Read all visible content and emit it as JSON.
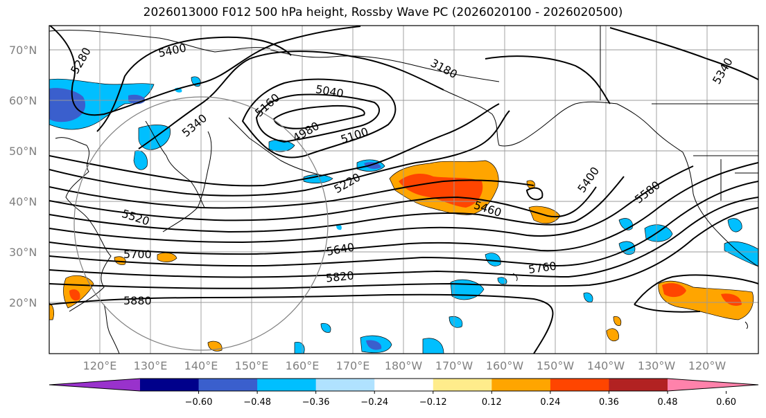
{
  "title": "2026013000 F012 500 hPa height, Rossby Wave PC (2026020100 - 2026020500)",
  "latitude_labels": [
    "70°N",
    "60°N",
    "50°N",
    "40°N",
    "30°N",
    "20°N"
  ],
  "longitude_labels": [
    "120°E",
    "130°E",
    "140°E",
    "150°E",
    "160°E",
    "170°E",
    "180°W",
    "170°W",
    "160°W",
    "150°W",
    "140°W",
    "130°W",
    "120°W"
  ],
  "contour_labels": [
    "5280",
    "5400",
    "5340",
    "5160",
    "5040",
    "4980",
    "5100",
    "5220",
    "3180",
    "5460",
    "5520",
    "5640",
    "5700",
    "5760",
    "5820",
    "5880",
    "5400",
    "5580",
    "5340"
  ],
  "colorbar": {
    "ticks": [
      "−0.60",
      "−0.48",
      "−0.36",
      "−0.24",
      "−0.12",
      "0.12",
      "0.24",
      "0.36",
      "0.48",
      "0.60"
    ],
    "colors": [
      "#9932CC",
      "#00008B",
      "#3A5FCD",
      "#00BFFF",
      "#B0E2FF",
      "#FFFFFF",
      "#FFEC8B",
      "#FFA500",
      "#FF4500",
      "#B22222",
      "#FF82AB"
    ]
  }
}
